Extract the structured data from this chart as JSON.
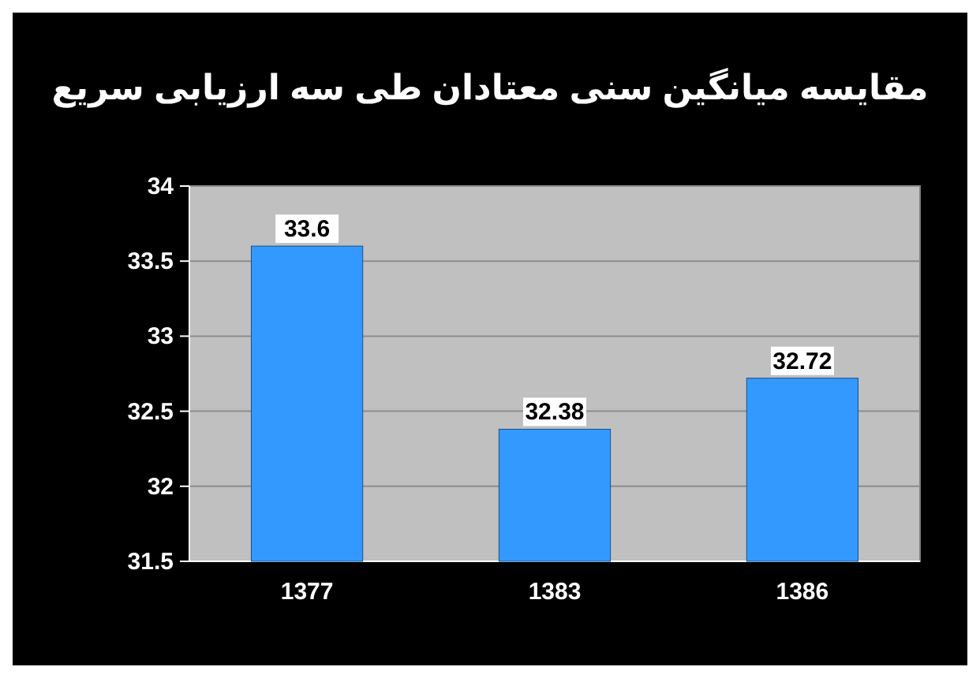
{
  "chart_data": {
    "type": "bar",
    "title": "مقایسه میانگین سنی معتادان طی سه ارزیابی سریع",
    "categories": [
      "1377",
      "1383",
      "1386"
    ],
    "values": [
      33.6,
      32.38,
      32.72
    ],
    "color": "#3399ff",
    "ylim": [
      31.5,
      34
    ],
    "yticks": [
      31.5,
      32,
      32.5,
      33,
      33.5,
      34
    ],
    "grid": "y",
    "data_labels": true
  }
}
